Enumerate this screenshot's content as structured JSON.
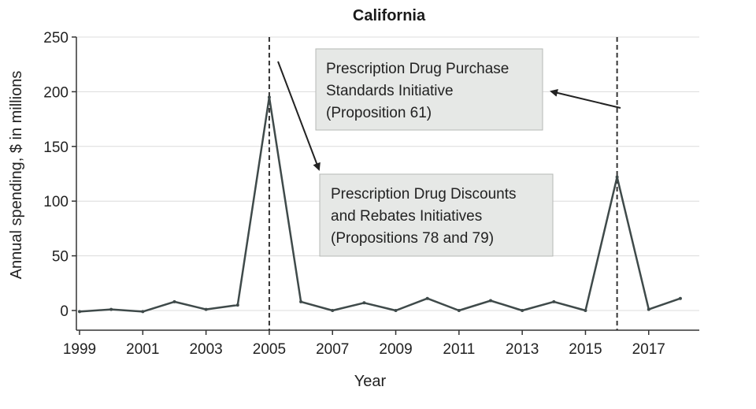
{
  "chart_data": {
    "type": "line",
    "title": "California",
    "xlabel": "Year",
    "ylabel": "Annual spending, $ in millions",
    "xlim": [
      1998.9,
      2018.6
    ],
    "ylim": [
      -18,
      250
    ],
    "yticks": [
      0,
      50,
      100,
      150,
      200,
      250
    ],
    "xticks": [
      1999,
      2001,
      2003,
      2005,
      2007,
      2009,
      2011,
      2013,
      2015,
      2017
    ],
    "grid": true,
    "series": [
      {
        "x": [
          1999,
          2000,
          2001,
          2002,
          2003,
          2004,
          2005,
          2006,
          2007,
          2008,
          2009,
          2010,
          2011,
          2012,
          2013,
          2014,
          2015,
          2016,
          2017,
          2018
        ],
        "values": [
          -1,
          1,
          -1,
          8,
          1,
          5,
          195,
          8,
          0,
          7,
          0,
          11,
          0,
          9,
          0,
          8,
          0,
          122,
          1,
          11
        ],
        "color": "#3f4a4a"
      }
    ],
    "event_lines": [
      2005,
      2016
    ],
    "annotations": [
      {
        "lines": [
          "Prescription Drug Purchase",
          "Standards Initiative",
          "(Proposition 61)"
        ],
        "event_year": 2016
      },
      {
        "lines": [
          "Prescription Drug Discounts",
          "and Rebates Initiatives",
          "(Propositions 78 and 79)"
        ],
        "event_year": 2005
      }
    ]
  }
}
